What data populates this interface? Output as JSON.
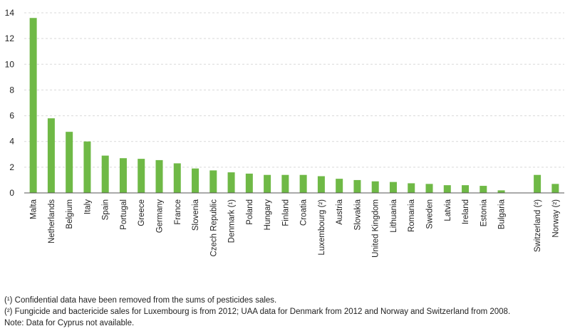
{
  "chart_data": {
    "type": "bar",
    "title": "",
    "xlabel": "",
    "ylabel": "",
    "ylim": [
      0,
      14
    ],
    "yticks": [
      0,
      2,
      4,
      6,
      8,
      10,
      12,
      14
    ],
    "grid": true,
    "bar_color": "#6fb946",
    "categories": [
      "Malta",
      "Netherlands",
      "Belgium",
      "Italy",
      "Spain",
      "Portugal",
      "Greece",
      "Germany",
      "France",
      "Slovenia",
      "Czech Republic",
      "Denmark (¹)",
      "Poland",
      "Hungary",
      "Finland",
      "Croatia",
      "Luxembourg (²)",
      "Austria",
      "Slovakia",
      "United Kingdom",
      "Lithuania",
      "Romania",
      "Sweden",
      "Latvia",
      "Ireland",
      "Estonia",
      "Bulgaria",
      "",
      "Switzerland (²)",
      "Norway (²)"
    ],
    "values": [
      13.6,
      5.8,
      4.75,
      4.0,
      2.9,
      2.7,
      2.65,
      2.55,
      2.3,
      1.9,
      1.75,
      1.6,
      1.5,
      1.4,
      1.4,
      1.4,
      1.3,
      1.1,
      1.0,
      0.9,
      0.85,
      0.75,
      0.7,
      0.6,
      0.6,
      0.55,
      0.2,
      null,
      1.4,
      0.7
    ]
  },
  "notes": [
    "(¹) Confidential data have been removed from the sums of pesticides sales.",
    "(²) Fungicide and bactericide sales for Luxembourg is from 2012; UAA data for Denmark from 2012 and Norway and Switzerland from 2008.",
    "Note: Data for Cyprus not available."
  ]
}
